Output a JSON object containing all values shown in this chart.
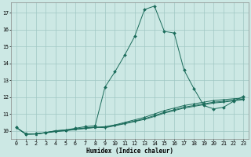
{
  "title": "",
  "xlabel": "Humidex (Indice chaleur)",
  "bg_color": "#cce8e4",
  "grid_color": "#a0c8c4",
  "line_color": "#1a6b5a",
  "xlim": [
    -0.5,
    23.5
  ],
  "ylim": [
    9.5,
    17.6
  ],
  "yticks": [
    10,
    11,
    12,
    13,
    14,
    15,
    16,
    17
  ],
  "xticks": [
    0,
    1,
    2,
    3,
    4,
    5,
    6,
    7,
    8,
    9,
    10,
    11,
    12,
    13,
    14,
    15,
    16,
    17,
    18,
    19,
    20,
    21,
    22,
    23
  ],
  "series1_x": [
    0,
    1,
    2,
    3,
    4,
    5,
    6,
    7,
    8,
    9,
    10,
    11,
    12,
    13,
    14,
    15,
    16,
    17,
    18,
    19,
    20,
    21,
    22,
    23
  ],
  "series1_y": [
    10.2,
    9.8,
    9.8,
    9.9,
    10.0,
    10.05,
    10.1,
    10.15,
    10.2,
    10.25,
    10.35,
    10.5,
    10.65,
    10.8,
    11.0,
    11.2,
    11.35,
    11.5,
    11.6,
    11.7,
    11.8,
    11.85,
    11.9,
    11.95
  ],
  "series2_x": [
    0,
    1,
    2,
    3,
    4,
    5,
    6,
    7,
    8,
    9,
    10,
    11,
    12,
    13,
    14,
    15,
    16,
    17,
    18,
    19,
    20,
    21,
    22,
    23
  ],
  "series2_y": [
    10.2,
    9.8,
    9.82,
    9.88,
    9.95,
    10.0,
    10.08,
    10.14,
    10.2,
    10.22,
    10.32,
    10.45,
    10.58,
    10.72,
    10.9,
    11.1,
    11.25,
    11.4,
    11.5,
    11.6,
    11.7,
    11.75,
    11.82,
    11.88
  ],
  "series3_x": [
    0,
    1,
    2,
    3,
    4,
    5,
    6,
    7,
    8,
    9,
    10,
    11,
    12,
    13,
    14,
    15,
    16,
    17,
    18,
    19,
    20,
    21,
    22,
    23
  ],
  "series3_y": [
    10.2,
    9.82,
    9.82,
    9.9,
    9.98,
    10.02,
    10.1,
    10.18,
    10.22,
    10.18,
    10.3,
    10.42,
    10.55,
    10.68,
    10.85,
    11.05,
    11.2,
    11.35,
    11.45,
    11.55,
    11.65,
    11.7,
    11.78,
    11.85
  ],
  "series4_x": [
    0,
    1,
    2,
    3,
    4,
    5,
    6,
    7,
    8,
    9,
    10,
    11,
    12,
    13,
    14,
    15,
    16,
    17,
    18,
    19,
    20,
    21,
    22,
    23
  ],
  "series4_y": [
    10.2,
    9.8,
    9.82,
    9.88,
    10.0,
    10.05,
    10.15,
    10.25,
    10.3,
    12.6,
    13.5,
    14.5,
    15.6,
    17.2,
    17.4,
    15.9,
    15.8,
    13.6,
    12.5,
    11.5,
    11.3,
    11.4,
    11.75,
    12.05
  ],
  "xlabel_fontsize": 5.5,
  "tick_fontsize": 4.8,
  "linewidth": 0.7,
  "markersize": 2.0
}
